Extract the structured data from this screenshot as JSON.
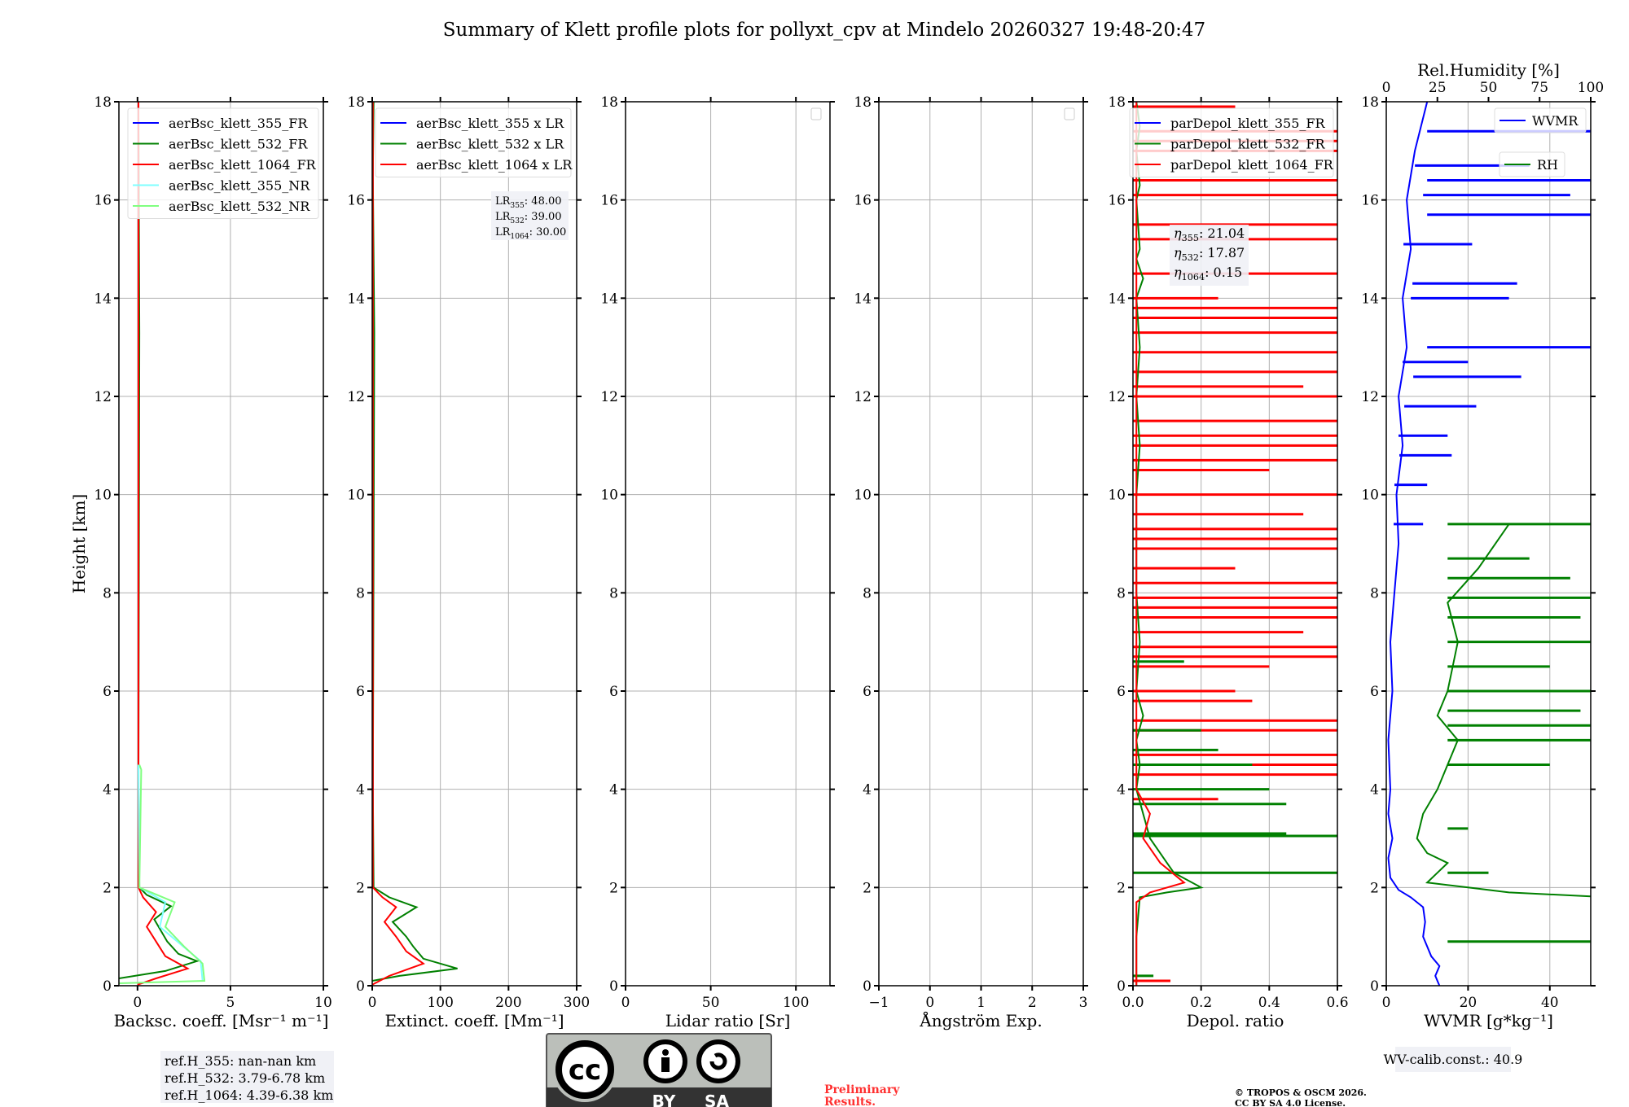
{
  "title": "Summary of Klett profile plots for pollyxt_cpv at Mindelo 20260327 19:48-20:47",
  "ylabel": "Height [km]",
  "ylim": [
    0,
    18
  ],
  "yticks": [
    0,
    2,
    4,
    6,
    8,
    10,
    12,
    14,
    16,
    18
  ],
  "chart_data": [
    {
      "type": "line",
      "id": "bsc",
      "xlabel": "Backsc. coeff. [Msr⁻¹ m⁻¹]",
      "xlim": [
        -1,
        10
      ],
      "xticks": [
        0,
        5,
        10
      ],
      "legend": "top-left",
      "series": [
        {
          "name": "aerBsc_klett_355_FR",
          "color": "#0000ff",
          "points": [
            [
              0.05,
              18
            ],
            [
              0.05,
              2
            ]
          ]
        },
        {
          "name": "aerBsc_klett_532_FR",
          "color": "#008000",
          "points": [
            [
              0.05,
              18
            ],
            [
              0.1,
              13.3
            ],
            [
              0.05,
              4
            ],
            [
              0.1,
              2
            ],
            [
              0.5,
              1.85
            ],
            [
              1.8,
              1.62
            ],
            [
              0.9,
              1.35
            ],
            [
              1.6,
              0.9
            ],
            [
              2.2,
              0.65
            ],
            [
              3.2,
              0.5
            ],
            [
              1.5,
              0.3
            ],
            [
              -1,
              0.15
            ]
          ]
        },
        {
          "name": "aerBsc_klett_1064_FR",
          "color": "#ff0000",
          "points": [
            [
              0.05,
              18
            ],
            [
              0.05,
              2
            ],
            [
              0.3,
              1.8
            ],
            [
              1.0,
              1.5
            ],
            [
              0.5,
              1.2
            ],
            [
              1.0,
              0.9
            ],
            [
              1.5,
              0.6
            ],
            [
              2.7,
              0.35
            ],
            [
              1.0,
              0.15
            ],
            [
              0,
              0.02
            ]
          ]
        },
        {
          "name": "aerBsc_klett_355_NR",
          "color": "#7fffff",
          "points": [
            [
              0.05,
              4.5
            ],
            [
              0.1,
              2
            ],
            [
              1.5,
              1.7
            ],
            [
              1.2,
              1.2
            ],
            [
              3.4,
              0.5
            ],
            [
              3.5,
              0.1
            ]
          ]
        },
        {
          "name": "aerBsc_klett_532_NR",
          "color": "#80ff80",
          "points": [
            [
              0.1,
              4.5
            ],
            [
              0.2,
              4.4
            ],
            [
              0.1,
              2
            ],
            [
              2.0,
              1.7
            ],
            [
              1.5,
              1.2
            ],
            [
              2.5,
              0.8
            ],
            [
              3.5,
              0.45
            ],
            [
              3.6,
              0.1
            ],
            [
              -1,
              0.05
            ]
          ]
        }
      ],
      "annotation": []
    },
    {
      "type": "line",
      "id": "ext",
      "xlabel": "Extinct. coeff. [Mm⁻¹]",
      "xlim": [
        0,
        300
      ],
      "xticks": [
        0,
        100,
        200,
        300
      ],
      "legend": "top-right",
      "series": [
        {
          "name": "aerBsc_klett_355 x LR",
          "color": "#0000ff",
          "points": [
            [
              1,
              18
            ],
            [
              1,
              2
            ]
          ]
        },
        {
          "name": "aerBsc_klett_532 x LR",
          "color": "#008000",
          "points": [
            [
              2,
              18
            ],
            [
              1,
              16.5
            ],
            [
              3,
              13.3
            ],
            [
              1,
              4
            ],
            [
              2,
              2
            ],
            [
              25,
              1.8
            ],
            [
              65,
              1.6
            ],
            [
              30,
              1.3
            ],
            [
              50,
              1.0
            ],
            [
              60,
              0.8
            ],
            [
              75,
              0.55
            ],
            [
              125,
              0.35
            ],
            [
              40,
              0.2
            ],
            [
              0,
              0.1
            ]
          ]
        },
        {
          "name": "aerBsc_klett_1064 x LR",
          "color": "#ff0000",
          "points": [
            [
              1,
              18
            ],
            [
              1,
              2
            ],
            [
              15,
              1.8
            ],
            [
              35,
              1.6
            ],
            [
              18,
              1.3
            ],
            [
              35,
              1.0
            ],
            [
              50,
              0.7
            ],
            [
              75,
              0.45
            ],
            [
              25,
              0.2
            ],
            [
              0,
              0.02
            ]
          ]
        }
      ],
      "annotation": [
        "LR355: 48.00",
        "LR532: 39.00",
        "LR1064: 30.00"
      ],
      "annotation_parts": [
        [
          "LR",
          "355",
          ": 48.00"
        ],
        [
          "LR",
          "532",
          ": 39.00"
        ],
        [
          "LR",
          "1064",
          ": 30.00"
        ]
      ]
    },
    {
      "type": "line",
      "id": "lr",
      "xlabel": "Lidar ratio [Sr]",
      "xlim": [
        0,
        120
      ],
      "xticks": [
        0,
        50,
        100
      ],
      "legend": "top-right",
      "series": []
    },
    {
      "type": "line",
      "id": "ae",
      "xlabel": "Ångström Exp.",
      "xlim": [
        -1,
        3
      ],
      "xticks": [
        -1,
        0,
        1,
        2,
        3
      ],
      "legend": "top-right",
      "series": []
    },
    {
      "type": "line",
      "id": "depol",
      "xlabel": "Depol. ratio",
      "xlim": [
        0,
        0.6
      ],
      "xticks": [
        0.0,
        0.2,
        0.4,
        0.6
      ],
      "xtick_labels": [
        "0.0",
        "0.2",
        "0.4",
        "0.6"
      ],
      "legend": "top-left",
      "series": [
        {
          "name": "parDepol_klett_355_FR",
          "color": "#0000ff",
          "points": []
        },
        {
          "name": "parDepol_klett_532_FR",
          "color": "#008000",
          "points": [
            [
              0.01,
              18
            ],
            [
              0.02,
              17.5
            ],
            [
              0.01,
              17
            ],
            [
              0.02,
              16.3
            ],
            [
              0.01,
              16
            ],
            [
              0.02,
              15
            ],
            [
              0.01,
              14.8
            ],
            [
              0.03,
              14.4
            ],
            [
              0.01,
              14
            ],
            [
              0.02,
              13
            ],
            [
              0.01,
              12
            ],
            [
              0.02,
              11
            ],
            [
              0.01,
              10
            ],
            [
              0.01,
              8
            ],
            [
              0.02,
              7
            ],
            [
              0.01,
              6
            ],
            [
              0.03,
              5.5
            ],
            [
              0.01,
              5
            ],
            [
              0.02,
              4.5
            ],
            [
              0.01,
              4
            ],
            [
              0.03,
              3.5
            ],
            [
              0.05,
              3
            ],
            [
              0.1,
              2.5
            ],
            [
              0.12,
              2.3
            ],
            [
              0.2,
              2.0
            ],
            [
              0.1,
              1.9
            ],
            [
              0.02,
              1.8
            ],
            [
              0.01,
              1
            ],
            [
              0.01,
              0
            ]
          ]
        },
        {
          "name": "parDepol_klett_1064_FR",
          "color": "#ff0000",
          "points": [
            [
              0.01,
              18
            ],
            [
              0.01,
              4
            ],
            [
              0.05,
              3.5
            ],
            [
              0.03,
              3
            ],
            [
              0.08,
              2.5
            ],
            [
              0.15,
              2.1
            ],
            [
              0.05,
              1.9
            ],
            [
              0.01,
              1.7
            ],
            [
              0.01,
              0
            ]
          ]
        }
      ],
      "spikes_532": [
        [
          2.3,
          0.6
        ],
        [
          3.05,
          0.6
        ],
        [
          3.1,
          0.45
        ],
        [
          3.7,
          0.45
        ],
        [
          4.0,
          0.4
        ],
        [
          4.5,
          0.35
        ],
        [
          4.8,
          0.25
        ],
        [
          5.2,
          0.2
        ],
        [
          6.6,
          0.15
        ],
        [
          0.2,
          0.06
        ]
      ],
      "spikes_1064": [
        [
          17.9,
          0.3
        ],
        [
          17.4,
          0.6
        ],
        [
          17.2,
          0.6
        ],
        [
          17.0,
          0.6
        ],
        [
          16.4,
          0.6
        ],
        [
          16.1,
          0.6
        ],
        [
          15.5,
          0.6
        ],
        [
          15.2,
          0.6
        ],
        [
          14.5,
          0.6
        ],
        [
          14.0,
          0.25
        ],
        [
          13.8,
          0.6
        ],
        [
          13.6,
          0.6
        ],
        [
          13.3,
          0.6
        ],
        [
          12.9,
          0.6
        ],
        [
          12.5,
          0.6
        ],
        [
          12.2,
          0.5
        ],
        [
          12.0,
          0.6
        ],
        [
          11.5,
          0.6
        ],
        [
          11.2,
          0.6
        ],
        [
          11.0,
          0.6
        ],
        [
          10.7,
          0.6
        ],
        [
          10.5,
          0.4
        ],
        [
          10.0,
          0.6
        ],
        [
          9.6,
          0.5
        ],
        [
          9.3,
          0.6
        ],
        [
          9.1,
          0.6
        ],
        [
          8.9,
          0.6
        ],
        [
          8.5,
          0.3
        ],
        [
          8.2,
          0.6
        ],
        [
          7.9,
          0.6
        ],
        [
          7.7,
          0.6
        ],
        [
          7.5,
          0.6
        ],
        [
          7.2,
          0.5
        ],
        [
          6.9,
          0.6
        ],
        [
          6.7,
          0.6
        ],
        [
          6.5,
          0.4
        ],
        [
          6.0,
          0.3
        ],
        [
          5.8,
          0.35
        ],
        [
          5.4,
          0.6
        ],
        [
          5.2,
          0.6
        ],
        [
          4.7,
          0.6
        ],
        [
          4.5,
          0.6
        ],
        [
          4.3,
          0.6
        ],
        [
          3.8,
          0.25
        ],
        [
          0.1,
          0.11
        ]
      ],
      "annotation": [
        "η355: 21.04",
        "η532: 17.87",
        "η1064: 0.15"
      ],
      "annotation_parts": [
        [
          "η",
          "355",
          ": 21.04"
        ],
        [
          "η",
          "532",
          ": 17.87"
        ],
        [
          "η",
          "1064",
          ": 0.15"
        ]
      ]
    },
    {
      "type": "line",
      "id": "wv",
      "xlabel": "WVMR [g*kg⁻¹]",
      "xlim": [
        0,
        50
      ],
      "xticks": [
        0,
        20,
        40
      ],
      "top_xlabel": "Rel.Humidity [%]",
      "top_xlim": [
        0,
        100
      ],
      "top_xticks": [
        0,
        25,
        50,
        75,
        100
      ],
      "series": [
        {
          "name": "WVMR",
          "color": "#0000ff",
          "axis": "bottom",
          "points": [
            [
              13,
              0
            ],
            [
              12,
              0.2
            ],
            [
              13,
              0.4
            ],
            [
              11,
              0.6
            ],
            [
              10,
              0.8
            ],
            [
              9,
              1.0
            ],
            [
              9.5,
              1.3
            ],
            [
              9,
              1.6
            ],
            [
              6,
              1.8
            ],
            [
              3,
              1.95
            ],
            [
              1,
              2.2
            ],
            [
              0.5,
              2.6
            ],
            [
              1.5,
              3
            ],
            [
              0.5,
              3.5
            ],
            [
              1,
              4
            ],
            [
              0.5,
              5
            ],
            [
              1.5,
              6
            ],
            [
              1,
              7
            ],
            [
              2,
              8
            ],
            [
              3,
              9
            ],
            [
              2.5,
              10
            ],
            [
              4,
              11
            ],
            [
              3,
              12
            ],
            [
              5,
              13
            ],
            [
              4,
              14
            ],
            [
              6,
              15
            ],
            [
              5,
              16
            ],
            [
              7,
              17
            ],
            [
              10,
              18
            ]
          ]
        },
        {
          "name": "RH",
          "color": "#008000",
          "axis": "top",
          "points": [
            [
              100,
              1.82
            ],
            [
              60,
              1.9
            ],
            [
              40,
              2.0
            ],
            [
              20,
              2.1
            ],
            [
              25,
              2.3
            ],
            [
              30,
              2.5
            ],
            [
              20,
              2.7
            ],
            [
              15,
              3.0
            ],
            [
              18,
              3.5
            ],
            [
              25,
              4.0
            ],
            [
              30,
              4.5
            ],
            [
              35,
              5.0
            ],
            [
              25,
              5.5
            ],
            [
              30,
              6.0
            ],
            [
              35,
              7.0
            ],
            [
              30,
              7.8
            ],
            [
              45,
              8.5
            ],
            [
              60,
              9.4
            ]
          ]
        }
      ],
      "spikes_wv": [
        [
          17.4,
          50
        ],
        [
          16.7,
          35
        ],
        [
          16.4,
          50
        ],
        [
          16.1,
          45
        ],
        [
          15.7,
          50
        ],
        [
          15.1,
          21
        ],
        [
          14.3,
          32
        ],
        [
          14.0,
          30
        ],
        [
          13.0,
          50
        ],
        [
          12.7,
          20
        ],
        [
          12.4,
          33
        ],
        [
          11.8,
          22
        ],
        [
          11.2,
          15
        ],
        [
          10.8,
          16
        ],
        [
          10.2,
          10
        ],
        [
          9.4,
          9
        ]
      ],
      "spikes_rh": [
        [
          0.9,
          100
        ],
        [
          2.3,
          50
        ],
        [
          3.2,
          40
        ],
        [
          4.5,
          80
        ],
        [
          5.0,
          100
        ],
        [
          5.3,
          100
        ],
        [
          5.6,
          95
        ],
        [
          6.0,
          100
        ],
        [
          6.5,
          80
        ],
        [
          7.0,
          100
        ],
        [
          7.5,
          95
        ],
        [
          7.9,
          100
        ],
        [
          8.3,
          90
        ],
        [
          8.7,
          70
        ],
        [
          9.4,
          100
        ]
      ],
      "annotation": [
        "WV-calib.const.: 40.9"
      ]
    }
  ],
  "ref_heights": [
    "ref.H_355: nan-nan km",
    "ref.H_532: 3.79-6.78 km",
    "ref.H_1064: 4.39-6.38 km"
  ],
  "license_logo": {
    "cc": "cc",
    "by": "BY",
    "sa": "SA"
  },
  "preliminary": [
    "Preliminary",
    "Results."
  ],
  "copyright": [
    "© TROPOS & OSCM 2026.",
    "CC BY SA 4.0 License."
  ]
}
